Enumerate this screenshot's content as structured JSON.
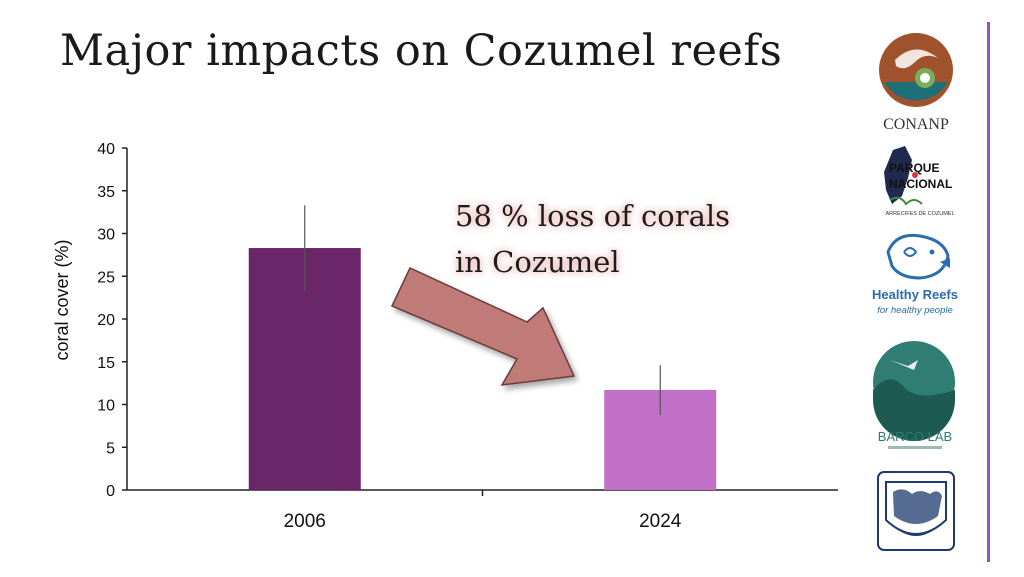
{
  "title": "Major impacts on Cozumel reefs",
  "chart_data": {
    "type": "bar",
    "categories": [
      "2006",
      "2024"
    ],
    "values": [
      28.3,
      11.7
    ],
    "error": [
      5.0,
      2.9
    ],
    "ylabel": "coral cover (%)",
    "xlabel": "",
    "ylim": [
      0,
      40
    ],
    "yticks": [
      0,
      5,
      10,
      15,
      20,
      25,
      30,
      35,
      40
    ],
    "bar_colors": [
      "#6a2668",
      "#c26fc8"
    ],
    "grid": false,
    "annotation": {
      "line1": "58 % loss of corals",
      "line2": "in Cozumel",
      "arrow_color": "#c07a78"
    }
  },
  "logos": {
    "conanp": "CONANP",
    "parque_line1": "PARQUE",
    "parque_line2": "NACIONAL",
    "parque_sub": "ARRECIFES DE COZUMEL",
    "healthy_title": "Healthy Reefs",
    "healthy_sub": "for healthy people",
    "barco": "BARCO LAB"
  },
  "colors": {
    "accent": "#8a57c9",
    "conanp_brown": "#a0522d",
    "conanp_teal": "#1f6f78",
    "healthy_blue": "#2a6db0",
    "barco_teal": "#2f7d73",
    "unam_navy": "#1e3a6e"
  }
}
